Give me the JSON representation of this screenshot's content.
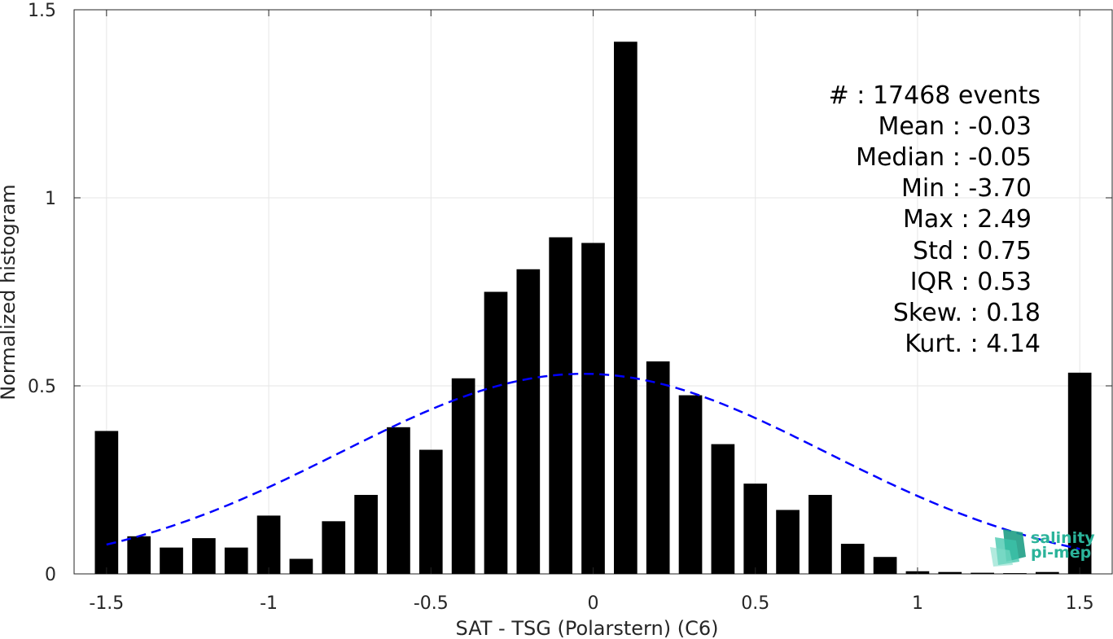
{
  "chart_data": {
    "type": "bar",
    "xlabel": "SAT - TSG (Polarstern) (C6)",
    "ylabel": "Normalized histogram",
    "xlim": [
      -1.6,
      1.6
    ],
    "ylim": [
      0,
      1.5
    ],
    "xticks": [
      -1.5,
      -1,
      -0.5,
      0,
      0.5,
      1,
      1.5
    ],
    "xtick_labels": [
      "-1.5",
      "-1",
      "-0.5",
      "0",
      "0.5",
      "1",
      "1.5"
    ],
    "yticks": [
      0,
      0.5,
      1,
      1.5
    ],
    "ytick_labels": [
      "0",
      "0.5",
      "1",
      "1.5"
    ],
    "grid": true,
    "bar_color": "#000000",
    "bars": {
      "x": [
        -1.5,
        -1.4,
        -1.3,
        -1.2,
        -1.1,
        -1.0,
        -0.9,
        -0.8,
        -0.7,
        -0.6,
        -0.5,
        -0.4,
        -0.3,
        -0.2,
        -0.1,
        0.0,
        0.1,
        0.2,
        0.3,
        0.4,
        0.5,
        0.6,
        0.7,
        0.8,
        0.9,
        1.0,
        1.1,
        1.2,
        1.3,
        1.4,
        1.5
      ],
      "values": [
        0.38,
        0.1,
        0.07,
        0.095,
        0.07,
        0.155,
        0.04,
        0.14,
        0.21,
        0.39,
        0.33,
        0.52,
        0.75,
        0.81,
        0.895,
        0.88,
        1.415,
        0.565,
        0.475,
        0.345,
        0.24,
        0.17,
        0.21,
        0.08,
        0.045,
        0.007,
        0.005,
        0.003,
        0.002,
        0.005,
        0.535
      ]
    },
    "fit_curve": {
      "type": "gaussian",
      "mean": -0.03,
      "std": 0.75,
      "x_range": [
        -1.5,
        1.5
      ],
      "color": "#0000ff",
      "style": "dashed"
    },
    "stats_box": {
      "lines": [
        "#  : 17468 events",
        "Mean : -0.03",
        "Median : -0.05",
        "Min : -3.70",
        "Max : 2.49",
        "Std : 0.75",
        "IQR : 0.53",
        "Skew. : 0.18",
        "Kurt. : 4.14"
      ]
    },
    "logo": {
      "text_line1": "salinity",
      "text_line2": "pi-mep",
      "color": "#2bb39a"
    }
  }
}
